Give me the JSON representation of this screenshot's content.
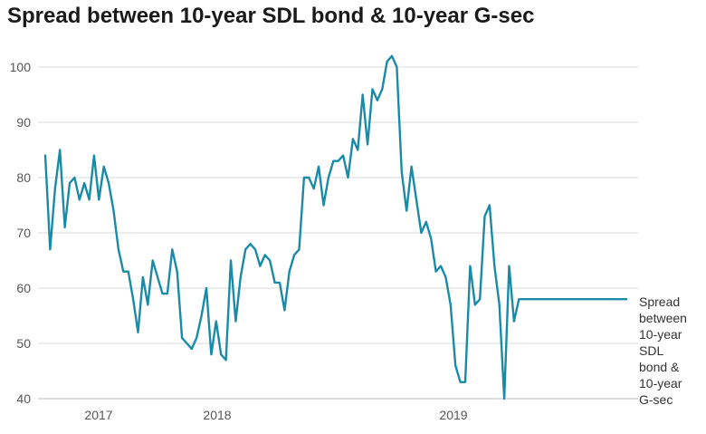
{
  "chart_data": {
    "type": "line",
    "title": "Spread between 10-year SDL bond & 10-year G-sec",
    "xlabel": "",
    "ylabel": "",
    "ylim": [
      40,
      102
    ],
    "yticks": [
      40,
      50,
      60,
      70,
      80,
      90,
      100
    ],
    "xtick_labels": [
      "2017",
      "2018",
      "2019"
    ],
    "grid": "horizontal",
    "line_color": "#1a8ba7",
    "series": [
      {
        "name": "Spread between 10-year SDL bond & 10-year G-sec",
        "label_lines": [
          "Spread",
          "between",
          "10-year",
          "SDL",
          "bond &",
          "10-year",
          "G-sec"
        ],
        "x": [
          "2016-10",
          "2016-10",
          "2016-11",
          "2016-11",
          "2016-12",
          "2016-12",
          "2017-01",
          "2017-01",
          "2017-02",
          "2017-02",
          "2017-03",
          "2017-03",
          "2017-04",
          "2017-04",
          "2017-05",
          "2017-05",
          "2017-06",
          "2017-06",
          "2017-07",
          "2017-07",
          "2017-08",
          "2017-08",
          "2017-09",
          "2017-09",
          "2017-10",
          "2017-10",
          "2017-11",
          "2017-11",
          "2017-12",
          "2017-12",
          "2018-01",
          "2018-01",
          "2018-02",
          "2018-02",
          "2018-02",
          "2018-03",
          "2018-03",
          "2018-04",
          "2018-04",
          "2018-05",
          "2018-05",
          "2018-06",
          "2018-06",
          "2018-07",
          "2018-07",
          "2018-07",
          "2018-08",
          "2018-08",
          "2018-09",
          "2018-09",
          "2018-09",
          "2018-10",
          "2018-10",
          "2018-10",
          "2018-11",
          "2018-11",
          "2018-11",
          "2018-12",
          "2018-12",
          "2018-12",
          "2019-01",
          "2019-01",
          "2019-01",
          "2019-02",
          "2019-02",
          "2019-02",
          "2019-03",
          "2019-03",
          "2019-03",
          "2019-04",
          "2019-04",
          "2019-04",
          "2019-05",
          "2019-05",
          "2019-05",
          "2019-06",
          "2019-06",
          "2019-06",
          "2019-07",
          "2019-07",
          "2019-07",
          "2019-08",
          "2019-08",
          "2019-08",
          "2019-09",
          "2019-09",
          "2019-09",
          "2019-10",
          "2019-10",
          "2019-10",
          "2019-11",
          "2019-11",
          "2019-11",
          "2019-12",
          "2019-12",
          "2019-12",
          "2020-01",
          "2020-01",
          "2020-01",
          "2020-02",
          "2020-02",
          "2020-02",
          "2020-03",
          "2020-03",
          "2020-03",
          "2020-04",
          "2020-04",
          "2020-04",
          "2020-05",
          "2020-05",
          "2020-05",
          "2020-06",
          "2020-06",
          "2020-06",
          "2020-07",
          "2020-07",
          "2020-07",
          "2020-08",
          "2020-08",
          "2020-08"
        ],
        "values": [
          84,
          67,
          78,
          85,
          71,
          79,
          80,
          76,
          79,
          76,
          84,
          76,
          82,
          79,
          74,
          67,
          63,
          63,
          58,
          52,
          62,
          57,
          65,
          62,
          59,
          59,
          67,
          63,
          51,
          50,
          49,
          51,
          55,
          60,
          48,
          54,
          48,
          47,
          65,
          54,
          62,
          67,
          68,
          67,
          64,
          66,
          65,
          61,
          61,
          56,
          63,
          66,
          67,
          80,
          80,
          78,
          82,
          75,
          80,
          83,
          83,
          84,
          80,
          87,
          85,
          95,
          86,
          96,
          94,
          96,
          101,
          102,
          100,
          81,
          74,
          82,
          76,
          70,
          72,
          69,
          63,
          64,
          62,
          57,
          46,
          43,
          43,
          64,
          57,
          58,
          73,
          75,
          64,
          57,
          40,
          64,
          54,
          58,
          58,
          58,
          58,
          58,
          58,
          58,
          58,
          58,
          58,
          58,
          58,
          58,
          58,
          58,
          58,
          58,
          58,
          58,
          58,
          58,
          58,
          58
        ]
      }
    ]
  }
}
